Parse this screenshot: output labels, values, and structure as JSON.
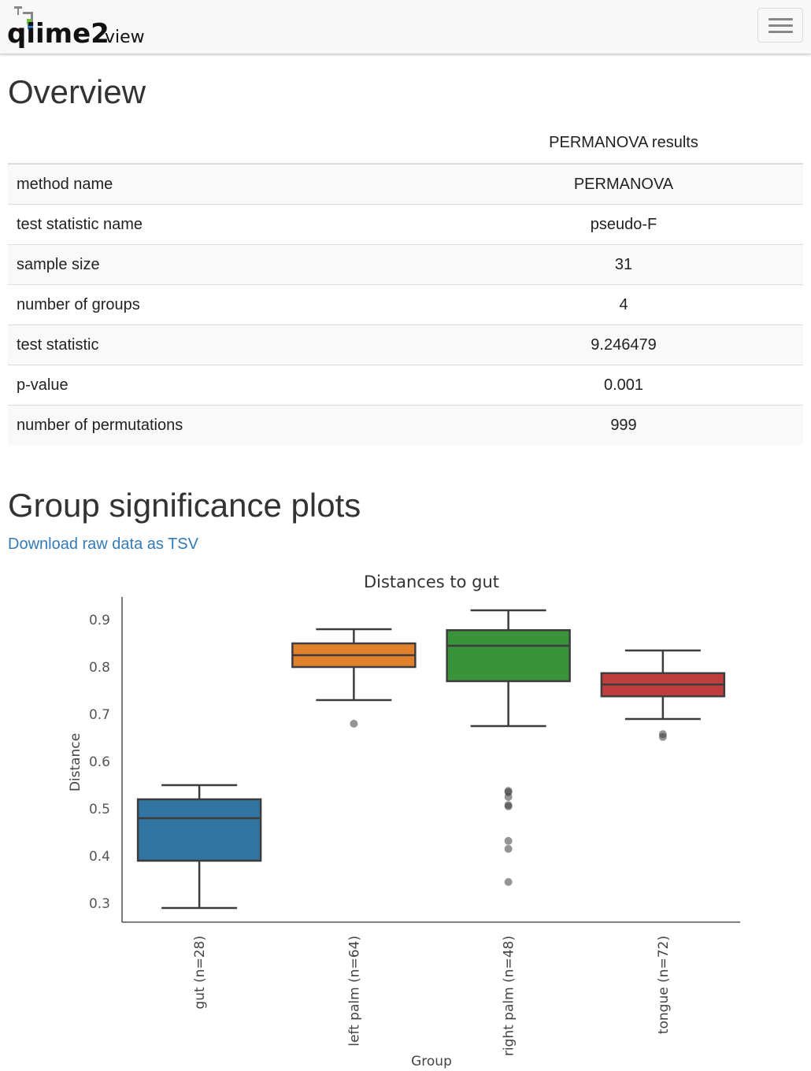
{
  "nav": {
    "logo_main": "qiime2",
    "logo_sub": "view"
  },
  "overview": {
    "heading": "Overview",
    "table_header": "PERMANOVA results",
    "rows": [
      {
        "label": "method name",
        "value": "PERMANOVA"
      },
      {
        "label": "test statistic name",
        "value": "pseudo-F"
      },
      {
        "label": "sample size",
        "value": "31"
      },
      {
        "label": "number of groups",
        "value": "4"
      },
      {
        "label": "test statistic",
        "value": "9.246479"
      },
      {
        "label": "p-value",
        "value": "0.001"
      },
      {
        "label": "number of permutations",
        "value": "999"
      }
    ]
  },
  "group_section": {
    "heading": "Group significance plots",
    "download_link": "Download raw data as TSV"
  },
  "chart_data": {
    "type": "boxplot",
    "title": "Distances to gut",
    "xlabel": "Group",
    "ylabel": "Distance",
    "ylim": [
      0.26,
      0.95
    ],
    "yticks": [
      "0.3",
      "0.4",
      "0.5",
      "0.6",
      "0.7",
      "0.8",
      "0.9"
    ],
    "grid": false,
    "categories": [
      "gut (n=28)",
      "left palm (n=64)",
      "right palm (n=48)",
      "tongue (n=72)"
    ],
    "boxes": [
      {
        "whisker_low": 0.29,
        "q1": 0.39,
        "median": 0.48,
        "q3": 0.52,
        "whisker_high": 0.55,
        "outliers": [],
        "color": "#3274a1"
      },
      {
        "whisker_low": 0.73,
        "q1": 0.8,
        "median": 0.825,
        "q3": 0.85,
        "whisker_high": 0.88,
        "outliers": [
          0.68
        ],
        "color": "#e1812c"
      },
      {
        "whisker_low": 0.675,
        "q1": 0.77,
        "median": 0.845,
        "q3": 0.878,
        "whisker_high": 0.92,
        "outliers": [
          0.345,
          0.415,
          0.432,
          0.505,
          0.508,
          0.525,
          0.535,
          0.538
        ],
        "color": "#3a923a"
      },
      {
        "whisker_low": 0.69,
        "q1": 0.738,
        "median": 0.763,
        "q3": 0.787,
        "whisker_high": 0.835,
        "outliers": [
          0.652,
          0.658
        ],
        "color": "#c03d3e"
      }
    ]
  }
}
